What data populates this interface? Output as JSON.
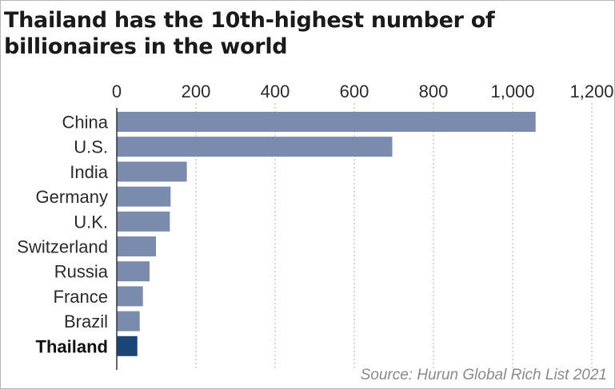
{
  "chart_data": {
    "type": "bar",
    "orientation": "horizontal",
    "title": "Thailand has the 10th-highest number of billionaires in the world",
    "categories": [
      "China",
      "U.S.",
      "India",
      "Germany",
      "U.K.",
      "Switzerland",
      "Russia",
      "France",
      "Brazil",
      "Thailand"
    ],
    "values": [
      1058,
      696,
      177,
      136,
      134,
      99,
      83,
      66,
      58,
      52
    ],
    "highlight": "Thailand",
    "xlim": [
      0,
      1200
    ],
    "xticks": [
      0,
      200,
      400,
      600,
      800,
      1000,
      1200
    ],
    "xtick_labels": [
      "0",
      "200",
      "400",
      "600",
      "800",
      "1,000",
      "1,200"
    ],
    "grid": true,
    "grid_style": "dotted vertical",
    "source": "Source: Hurun Global Rich List 2021",
    "colors": {
      "bar": "#7a8bad",
      "highlight": "#1b4577",
      "grid": "#bdbdbd",
      "axis": "#333333"
    }
  }
}
